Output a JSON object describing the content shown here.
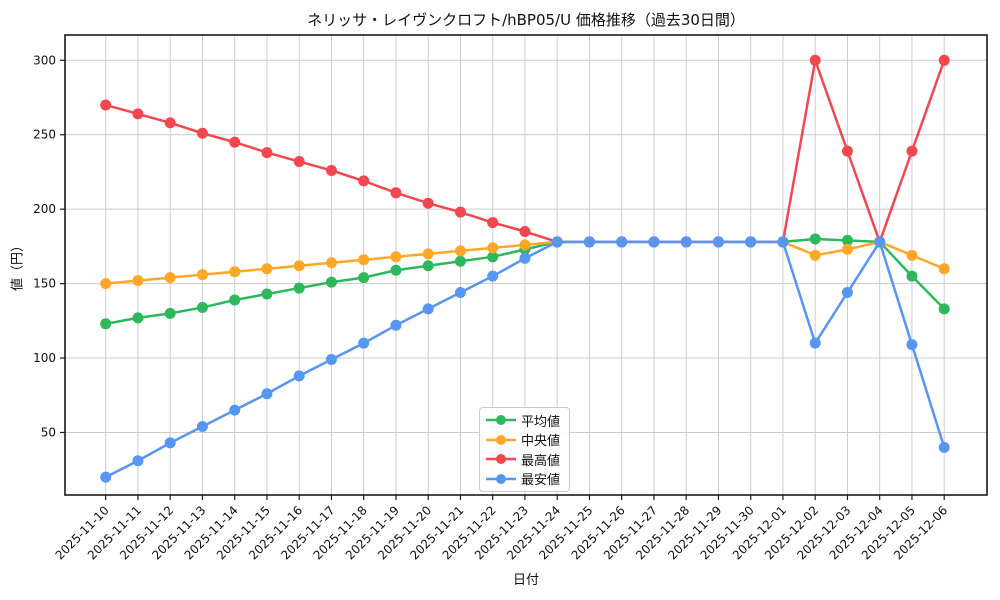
{
  "figure": {
    "title": "ネリッサ・レイヴンクロフト/hBP05/U 価格推移（過去30日間）",
    "xlabel": "日付",
    "ylabel": "値（円）"
  },
  "chart_data": {
    "type": "line",
    "title": "ネリッサ・レイヴンクロフト/hBP05/U 価格推移（過去30日間）",
    "xlabel": "日付",
    "ylabel": "値（円）",
    "x": [
      "2025-11-10",
      "2025-11-11",
      "2025-11-12",
      "2025-11-13",
      "2025-11-14",
      "2025-11-15",
      "2025-11-16",
      "2025-11-17",
      "2025-11-18",
      "2025-11-19",
      "2025-11-20",
      "2025-11-21",
      "2025-11-22",
      "2025-11-23",
      "2025-11-24",
      "2025-11-25",
      "2025-11-26",
      "2025-11-27",
      "2025-11-28",
      "2025-11-29",
      "2025-11-30",
      "2025-12-01",
      "2025-12-02",
      "2025-12-03",
      "2025-12-04",
      "2025-12-05",
      "2025-12-06"
    ],
    "series": [
      {
        "key": "average",
        "name": "平均値",
        "color": "#2eb85c",
        "values": [
          123,
          127,
          130,
          134,
          139,
          143,
          147,
          151,
          154,
          159,
          162,
          165,
          168,
          173,
          178,
          178,
          178,
          178,
          178,
          178,
          178,
          178,
          180,
          179,
          178,
          155,
          133
        ]
      },
      {
        "key": "median",
        "name": "中央値",
        "color": "#ffa726",
        "values": [
          150,
          152,
          154,
          156,
          158,
          160,
          162,
          164,
          166,
          168,
          170,
          172,
          174,
          176,
          178,
          178,
          178,
          178,
          178,
          178,
          178,
          178,
          169,
          173,
          178,
          169,
          160
        ]
      },
      {
        "key": "max",
        "name": "最高値",
        "color": "#f4474d",
        "values": [
          270,
          264,
          258,
          251,
          245,
          238,
          232,
          226,
          219,
          211,
          204,
          198,
          191,
          185,
          178,
          178,
          178,
          178,
          178,
          178,
          178,
          178,
          300,
          239,
          178,
          239,
          300
        ]
      },
      {
        "key": "min",
        "name": "最安値",
        "color": "#5596f6",
        "values": [
          20,
          31,
          43,
          54,
          65,
          76,
          88,
          99,
          110,
          122,
          133,
          144,
          155,
          167,
          178,
          178,
          178,
          178,
          178,
          178,
          178,
          178,
          110,
          144,
          178,
          109,
          40
        ]
      }
    ],
    "yticks": [
      50,
      100,
      150,
      200,
      250,
      300
    ],
    "ylim": [
      8,
      317
    ],
    "grid": true,
    "legend_position": "inside-lower-center"
  }
}
